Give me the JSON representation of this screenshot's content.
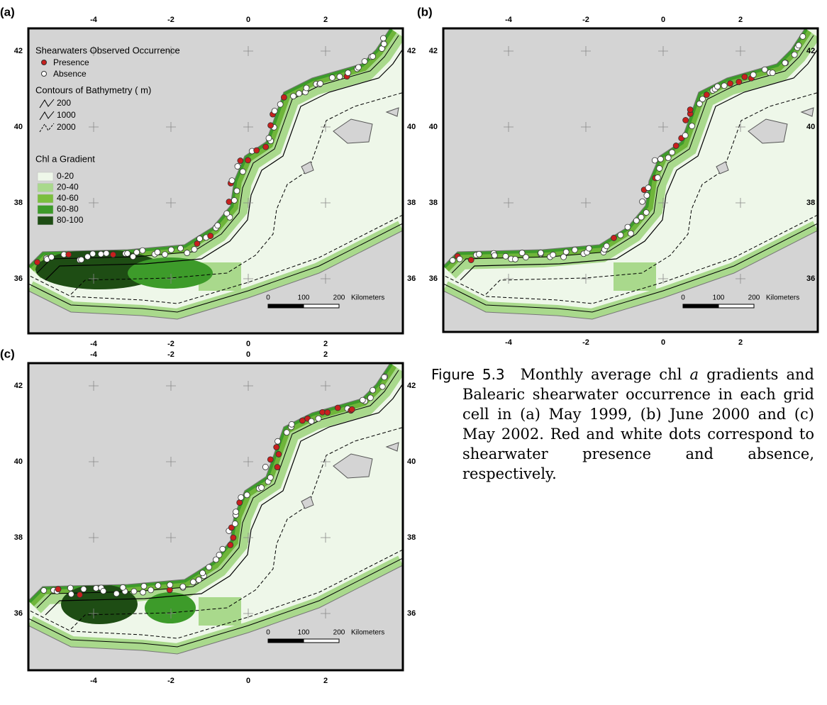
{
  "panels": [
    {
      "label": "(a)",
      "xticks": [
        -4,
        -2,
        0,
        2
      ],
      "yticks": [
        42,
        40,
        38,
        36
      ],
      "scale": {
        "zero": 0,
        "mid": 100,
        "end": 200,
        "unit": "Kilometers"
      }
    },
    {
      "label": "(b)",
      "xticks": [
        -4,
        -2,
        0,
        2
      ],
      "yticks": [
        42,
        40,
        38,
        36
      ],
      "scale": {
        "zero": 0,
        "mid": 100,
        "end": 200,
        "unit": "Kilometers"
      }
    },
    {
      "label": "(c)",
      "xticks": [
        -4,
        -2,
        0,
        2
      ],
      "yticks": [
        42,
        40,
        38,
        36
      ],
      "scale": {
        "zero": 0,
        "mid": 100,
        "end": 200,
        "unit": "Kilometers"
      }
    }
  ],
  "legend": {
    "occurrence_title": "Shearwaters Observed Occurrence",
    "presence": "Presence",
    "absence": "Absence",
    "bathymetry_title": "Contours of Bathymetry ( m)",
    "contours": [
      200,
      1000,
      2000
    ],
    "chl_title": "Chl a Gradient",
    "chl_classes": [
      "0-20",
      "20-40",
      "40-60",
      "60-80",
      "80-100"
    ]
  },
  "caption": {
    "label": "Figure 5.3",
    "before": "Monthly average chl",
    "italic": "a",
    "after": "gradients and Balearic shearwater occurrence in each grid cell in (a) May 1999, (b) June 2000 and (c) May 2002. Red and white dots correspond to shearwater presence and absence, respectively."
  }
}
